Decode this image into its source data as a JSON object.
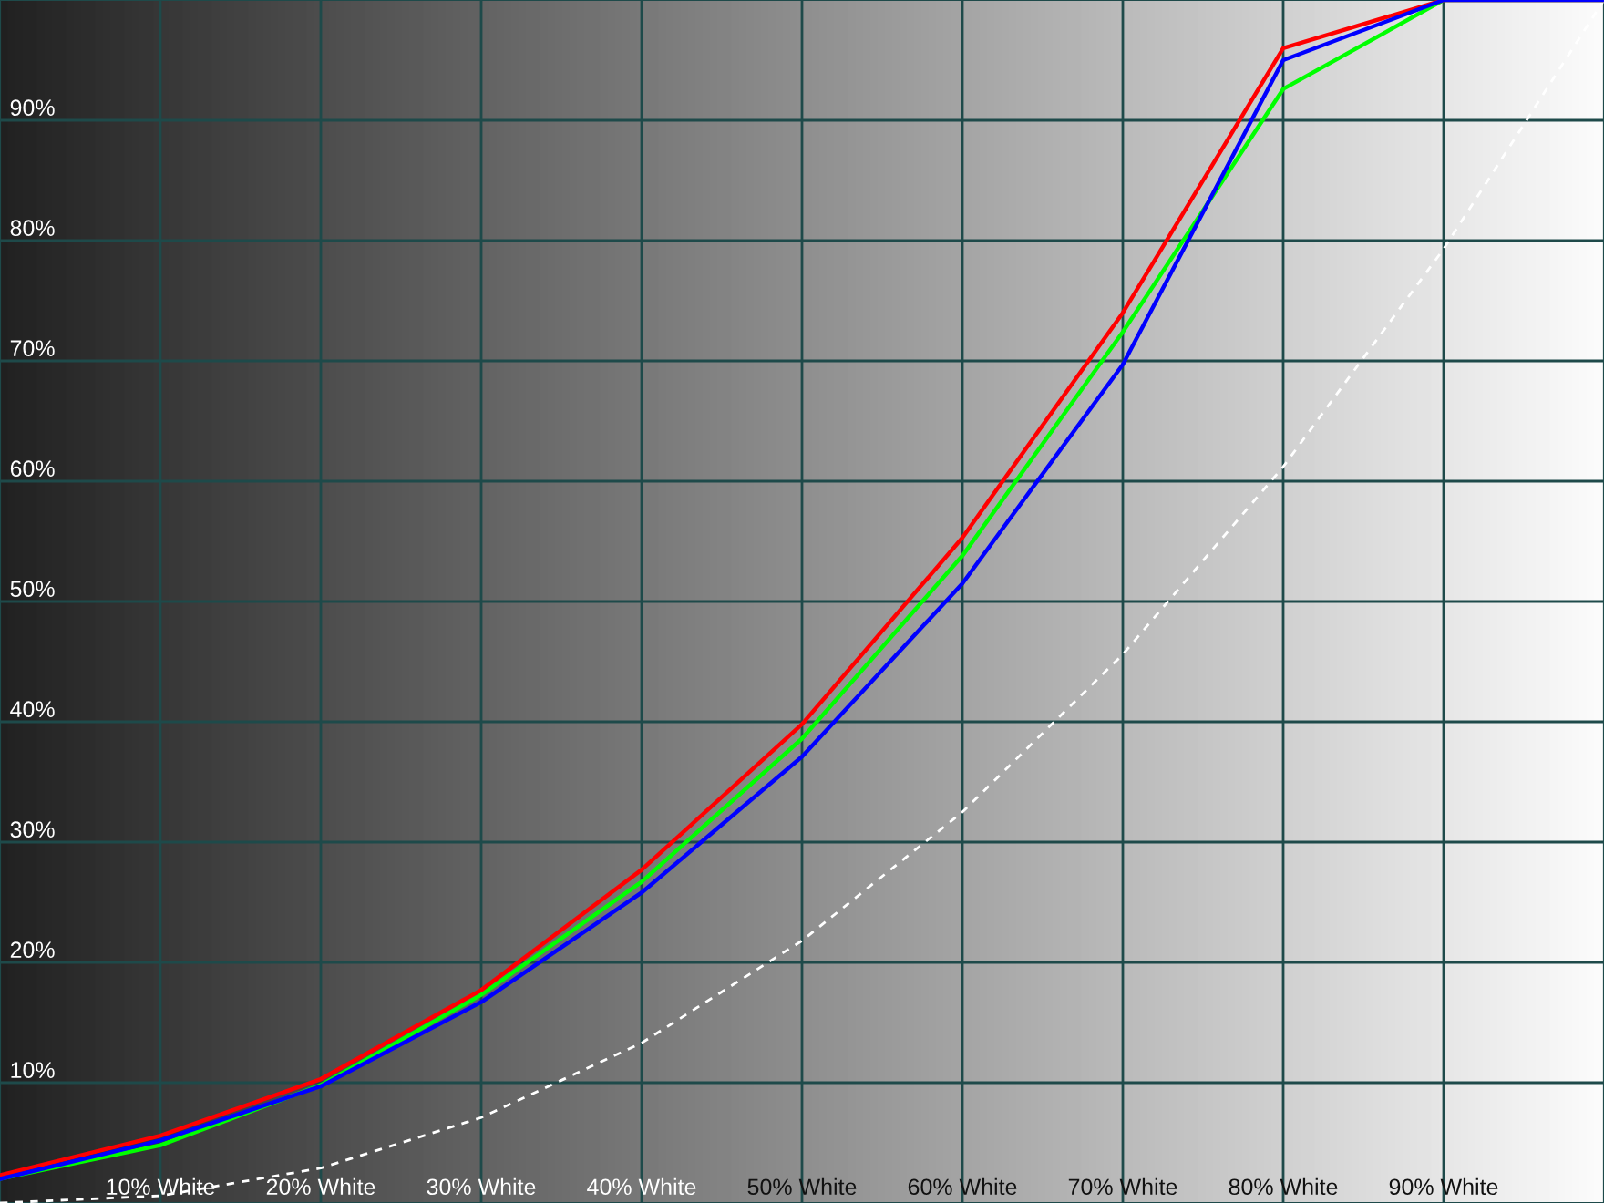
{
  "chart_data": {
    "type": "line",
    "x": [
      0,
      10,
      20,
      30,
      40,
      50,
      60,
      70,
      80,
      90,
      100
    ],
    "series": [
      {
        "color": "#ffffff",
        "line_style": "dashed",
        "values": [
          0,
          0.6,
          2.9,
          7.1,
          13.3,
          21.8,
          32.5,
          45.6,
          61.2,
          79.3,
          100
        ]
      },
      {
        "color": "#00ff00",
        "values": [
          2,
          4.8,
          9.8,
          17.3,
          26.7,
          38.6,
          53.8,
          72.4,
          92.6,
          100,
          100
        ]
      },
      {
        "color": "#ff0000",
        "values": [
          2.3,
          5.6,
          10.3,
          17.7,
          27.7,
          39.8,
          55.3,
          74,
          96,
          100,
          100
        ]
      },
      {
        "color": "#0000ff",
        "values": [
          2,
          5.2,
          9.7,
          16.7,
          25.8,
          37.1,
          51.5,
          69.7,
          95,
          100,
          100
        ]
      }
    ],
    "xlim": [
      0,
      100
    ],
    "ylim": [
      0,
      100
    ],
    "xticks": [
      {
        "value": 10,
        "label": "10% White"
      },
      {
        "value": 20,
        "label": "20% White"
      },
      {
        "value": 30,
        "label": "30% White"
      },
      {
        "value": 40,
        "label": "40% White"
      },
      {
        "value": 50,
        "label": "50% White"
      },
      {
        "value": 60,
        "label": "60% White"
      },
      {
        "value": 70,
        "label": "70% White"
      },
      {
        "value": 80,
        "label": "80% White"
      },
      {
        "value": 90,
        "label": "90% White"
      }
    ],
    "yticks": [
      {
        "value": 10,
        "label": "10%"
      },
      {
        "value": 20,
        "label": "20%"
      },
      {
        "value": 30,
        "label": "30%"
      },
      {
        "value": 40,
        "label": "40%"
      },
      {
        "value": 50,
        "label": "50%"
      },
      {
        "value": 60,
        "label": "60%"
      },
      {
        "value": 70,
        "label": "70%"
      },
      {
        "value": 80,
        "label": "80%"
      },
      {
        "value": 90,
        "label": "90%"
      }
    ],
    "grid": true,
    "legend": false,
    "marker": "none",
    "line_style": "solid"
  }
}
